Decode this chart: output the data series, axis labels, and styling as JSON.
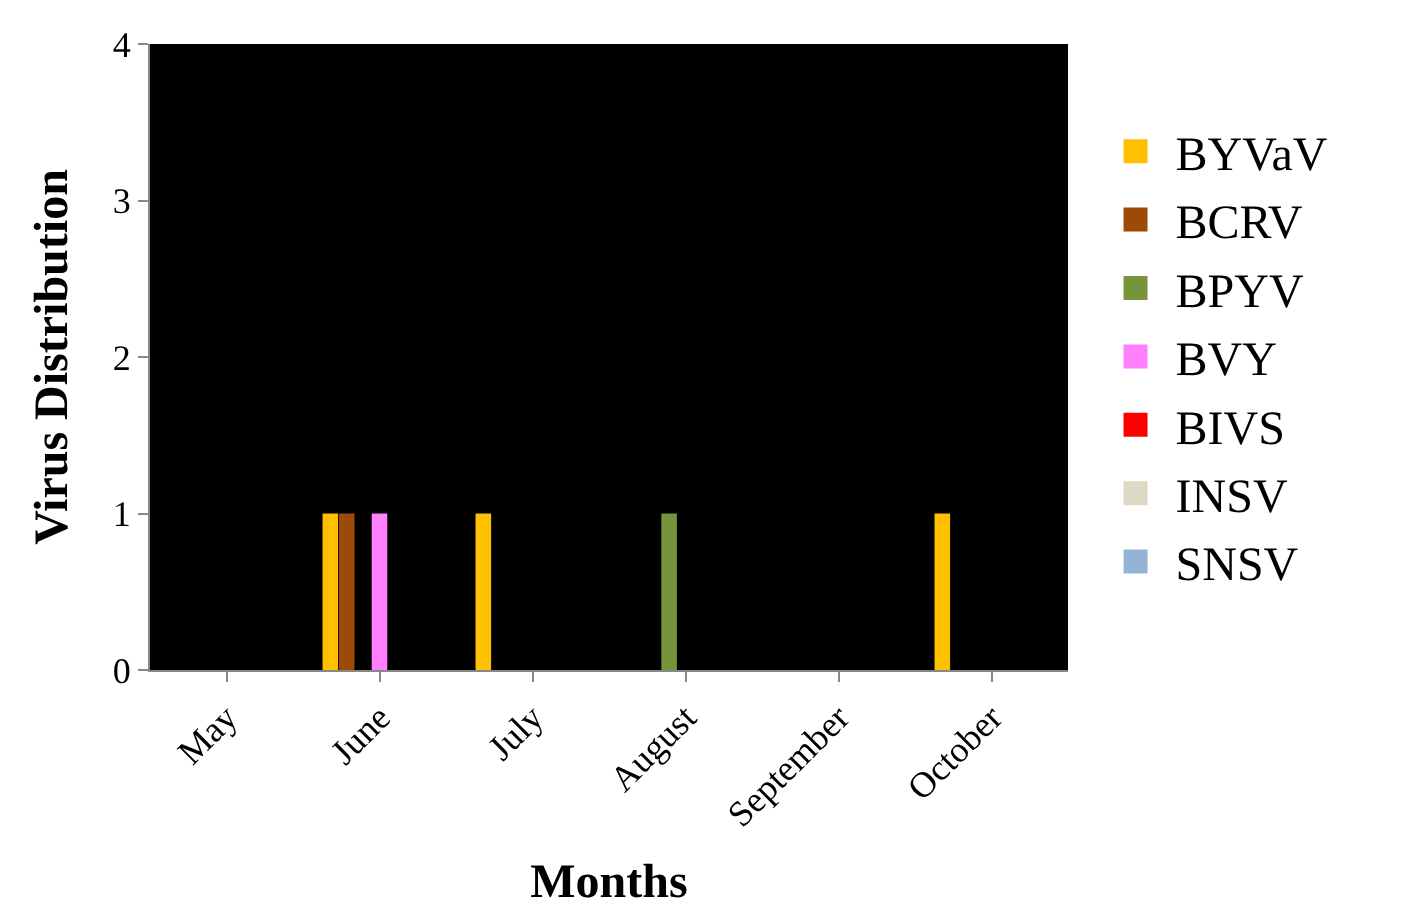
{
  "chart_data": {
    "type": "bar",
    "xlabel": "Months",
    "ylabel": "Virus Distribution",
    "categories": [
      "May",
      "June",
      "July",
      "August",
      "September",
      "October"
    ],
    "series": [
      {
        "name": "BYVaV",
        "color": "#ffc000",
        "values": [
          0,
          1,
          1,
          0,
          0,
          1
        ]
      },
      {
        "name": "BCRV",
        "color": "#9c4a06",
        "values": [
          0,
          1,
          0,
          0,
          0,
          0
        ]
      },
      {
        "name": "BPYV",
        "color": "#77933c",
        "values": [
          0,
          0,
          0,
          1,
          0,
          0
        ]
      },
      {
        "name": "BVY",
        "color": "#ff80ff",
        "values": [
          0,
          1,
          0,
          0,
          0,
          0
        ]
      },
      {
        "name": "BIVS",
        "color": "#ff0000",
        "values": [
          0,
          0,
          0,
          0,
          0,
          0
        ]
      },
      {
        "name": "INSV",
        "color": "#ddd9c3",
        "values": [
          0,
          0,
          0,
          0,
          0,
          0
        ]
      },
      {
        "name": "SNSV",
        "color": "#95b3d7",
        "values": [
          0,
          0,
          0,
          0,
          0,
          0
        ]
      }
    ],
    "ylim": [
      0,
      4
    ],
    "yticks": [
      0,
      1,
      2,
      3,
      4
    ],
    "grid": false,
    "legend": "right"
  }
}
